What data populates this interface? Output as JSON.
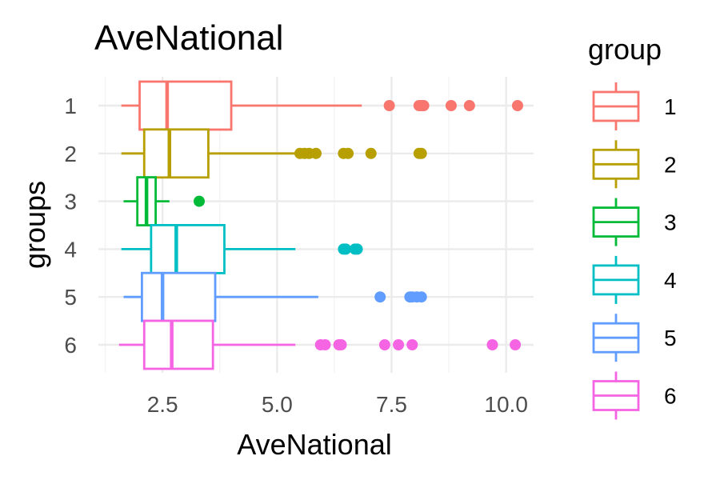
{
  "chart_data": {
    "type": "boxplot",
    "orientation": "horizontal",
    "title": "AveNational",
    "xlabel": "AveNational",
    "ylabel": "groups",
    "xlim": [
      1.1,
      10.6
    ],
    "x_ticks": [
      2.5,
      5.0,
      7.5,
      10.0
    ],
    "x_tick_labels": [
      "2.5",
      "5.0",
      "7.5",
      "10.0"
    ],
    "grid": true,
    "legend": {
      "title": "group",
      "position": "right"
    },
    "categories": [
      "1",
      "2",
      "3",
      "4",
      "5",
      "6"
    ],
    "series": [
      {
        "name": "1",
        "color": "#F8766D",
        "whisker_low": 1.6,
        "q1": 2.0,
        "median": 2.6,
        "q3": 4.0,
        "whisker_high": 6.85,
        "outliers": [
          7.45,
          8.1,
          8.15,
          8.2,
          8.8,
          9.2,
          10.25
        ]
      },
      {
        "name": "2",
        "color": "#B79F00",
        "whisker_low": 1.6,
        "q1": 2.1,
        "median": 2.65,
        "q3": 3.5,
        "whisker_high": 5.4,
        "outliers": [
          5.5,
          5.6,
          5.7,
          5.85,
          6.45,
          6.55,
          7.05,
          8.1,
          8.15
        ]
      },
      {
        "name": "3",
        "color": "#00BA38",
        "whisker_low": 1.65,
        "q1": 1.95,
        "median": 2.15,
        "q3": 2.35,
        "whisker_high": 2.65,
        "outliers": [
          3.3
        ]
      },
      {
        "name": "4",
        "color": "#00BFC4",
        "whisker_low": 1.6,
        "q1": 2.25,
        "median": 2.8,
        "q3": 3.85,
        "whisker_high": 5.4,
        "outliers": [
          6.45,
          6.5,
          6.7,
          6.75
        ]
      },
      {
        "name": "5",
        "color": "#619CFF",
        "whisker_low": 1.65,
        "q1": 2.05,
        "median": 2.5,
        "q3": 3.65,
        "whisker_high": 5.9,
        "outliers": [
          7.25,
          7.9,
          7.95,
          8.05,
          8.15
        ]
      },
      {
        "name": "6",
        "color": "#F564E3",
        "whisker_low": 1.55,
        "q1": 2.1,
        "median": 2.7,
        "q3": 3.6,
        "whisker_high": 5.4,
        "outliers": [
          5.95,
          6.05,
          6.35,
          6.4,
          7.35,
          7.65,
          7.95,
          9.7,
          10.2
        ]
      }
    ]
  }
}
